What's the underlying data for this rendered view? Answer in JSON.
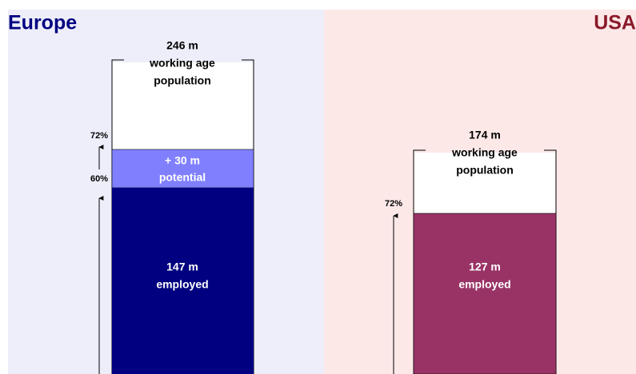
{
  "europe": {
    "title": "Europe",
    "population": [
      "246 m",
      "working age",
      "population"
    ],
    "potential": [
      "+ 30 m",
      "potential"
    ],
    "employed": [
      "147 m",
      "employed"
    ],
    "rates": [
      "72%",
      "60%"
    ]
  },
  "usa": {
    "title": "USA",
    "population": [
      "174 m",
      "working age",
      "population"
    ],
    "employed": [
      "127 m",
      "employed"
    ],
    "rates": [
      "72%"
    ]
  }
}
